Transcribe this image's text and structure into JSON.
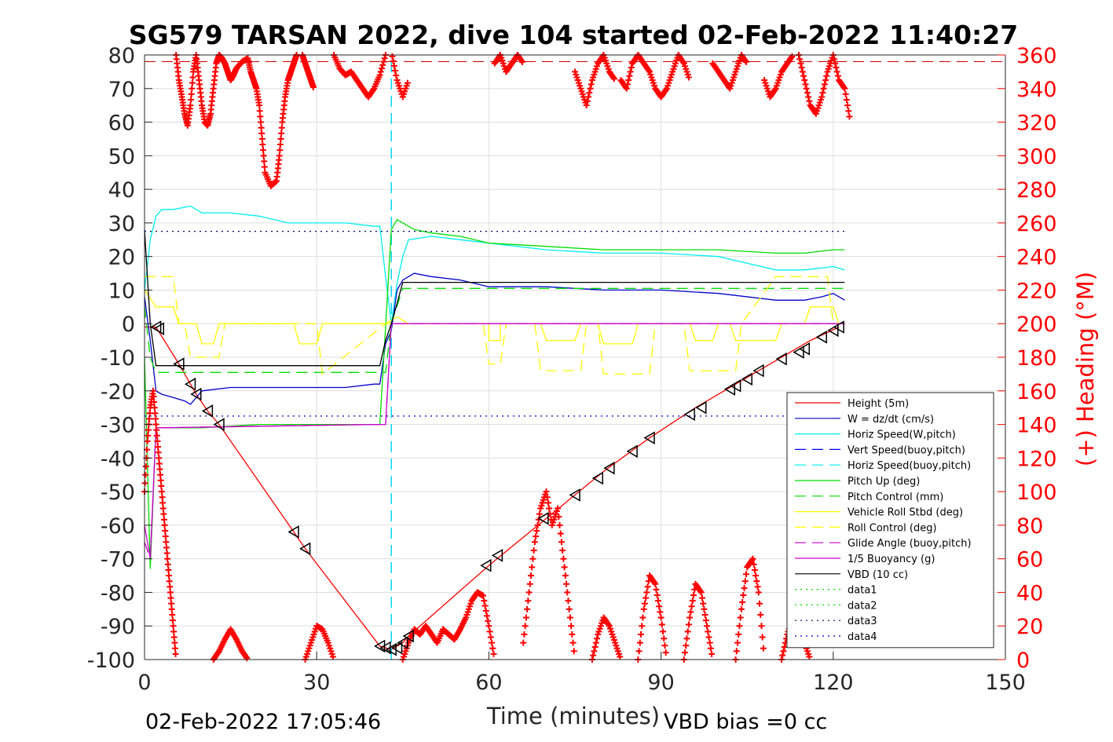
{
  "chart_data": {
    "type": "line",
    "title": "SG579 TARSAN 2022, dive 104 started 02-Feb-2022 11:40:27",
    "xlabel": "Time (minutes)",
    "ylabel_right": "(+) Heading (°M)",
    "footer_left": "02-Feb-2022 17:05:46",
    "footer_right": "VBD bias =0 cc",
    "xlim": [
      0,
      150
    ],
    "ylim": [
      -100,
      80
    ],
    "ylim_right": [
      0,
      360
    ],
    "x_ticks": [
      "0",
      "30",
      "60",
      "90",
      "120",
      "150"
    ],
    "y_ticks": [
      "80",
      "70",
      "60",
      "50",
      "40",
      "30",
      "20",
      "10",
      "0",
      "-10",
      "-20",
      "-30",
      "-40",
      "-50",
      "-60",
      "-70",
      "-80",
      "-90",
      "-100"
    ],
    "y_ticks_right": [
      "360",
      "340",
      "320",
      "300",
      "280",
      "260",
      "240",
      "220",
      "200",
      "180",
      "160",
      "140",
      "120",
      "100",
      "80",
      "60",
      "40",
      "20",
      "0"
    ],
    "grid": true,
    "legend_position": "bottom-right",
    "colors": {
      "height": "#ff0000",
      "w": "#0000cc",
      "horiz_speed": "#00eeee",
      "pitch": "#00dd00",
      "roll": "#ffff00",
      "glide": "#cc00cc",
      "vbd": "#000000",
      "heading": "#ff0000"
    },
    "series": [
      {
        "name": "Height (5m)",
        "color": "#ff0000",
        "style": "solid",
        "x": [
          0,
          2,
          6,
          8,
          9,
          11,
          13,
          26,
          28,
          41,
          43,
          45,
          46,
          60,
          70,
          75,
          80,
          88,
          96,
          104,
          110,
          116,
          121
        ],
        "y": [
          -1,
          -1,
          -12,
          -18,
          -21,
          -26,
          -30,
          -62,
          -67,
          -96,
          -97,
          -95,
          -93,
          -72,
          -58,
          -51,
          -44,
          -34,
          -25,
          -17,
          -11,
          -5,
          -1
        ]
      },
      {
        "name": "W = dz/dt (cm/s)",
        "color": "#0000cc",
        "style": "solid",
        "x": [
          0,
          1,
          2,
          3,
          5,
          7,
          8,
          10,
          15,
          20,
          25,
          30,
          35,
          40,
          41,
          42,
          43,
          44,
          45,
          47,
          50,
          55,
          60,
          70,
          80,
          90,
          100,
          110,
          115,
          118,
          120,
          122
        ],
        "y": [
          8,
          -5,
          -20,
          -21,
          -22,
          -23,
          -24,
          -20,
          -19,
          -19,
          -19,
          -19,
          -19,
          -18,
          -18,
          -6,
          -2,
          10,
          13,
          15,
          14,
          13,
          11,
          11,
          10,
          10,
          9,
          7,
          7,
          8,
          9,
          7
        ]
      },
      {
        "name": "Horiz Speed(W,pitch)",
        "color": "#00eeee",
        "style": "solid",
        "x": [
          0,
          1,
          2,
          3,
          5,
          8,
          10,
          15,
          20,
          25,
          30,
          35,
          40,
          41,
          42,
          43,
          44,
          45,
          46,
          50,
          55,
          60,
          70,
          80,
          90,
          100,
          105,
          110,
          115,
          120,
          122
        ],
        "y": [
          10,
          25,
          32,
          34,
          34,
          35,
          33,
          33,
          32,
          30,
          30,
          30,
          29,
          29,
          14,
          0,
          12,
          20,
          25,
          26,
          25,
          24,
          22,
          21,
          21,
          20,
          18,
          16,
          16,
          17,
          16
        ]
      },
      {
        "name": "Vert Speed(buoy,pitch)",
        "color": "#0000ff",
        "style": "dashed",
        "x": [
          43,
          43
        ],
        "y": [
          -100,
          80
        ]
      },
      {
        "name": "Horiz Speed(buoy,pitch)",
        "color": "#00eeee",
        "style": "dashed",
        "x": [
          43,
          43
        ],
        "y": [
          -100,
          80
        ]
      },
      {
        "name": "Pitch Up (deg)",
        "color": "#00dd00",
        "style": "solid",
        "x": [
          0,
          1,
          2,
          3,
          5,
          10,
          20,
          30,
          40,
          41,
          42,
          43,
          44,
          45,
          47,
          50,
          55,
          60,
          70,
          80,
          90,
          100,
          110,
          115,
          120,
          122
        ],
        "y": [
          -10,
          -73,
          -31,
          -31,
          -31,
          -31,
          -30,
          -30,
          -30,
          -30,
          -1,
          28,
          31,
          30,
          28,
          27,
          26,
          24,
          23,
          22,
          22,
          22,
          21,
          21,
          22,
          22
        ]
      },
      {
        "name": "Pitch Control (mm)",
        "color": "#00dd00",
        "style": "dashed",
        "x": [
          0,
          1,
          2,
          42,
          43,
          45,
          122
        ],
        "y": [
          5,
          -10,
          -14.5,
          -14.5,
          0,
          10.5,
          10.5
        ]
      },
      {
        "name": "Vehicle Roll Stbd (deg)",
        "color": "#ffff00",
        "style": "solid",
        "x": [
          0,
          2,
          3,
          5,
          6,
          7,
          9,
          10,
          12,
          13,
          26,
          27,
          30,
          31,
          40,
          42,
          44,
          46,
          60,
          60,
          62,
          62,
          69,
          70,
          75,
          76,
          79,
          80,
          85,
          86,
          95,
          96,
          99,
          100,
          102,
          103,
          110,
          111,
          115,
          116,
          120,
          121,
          122
        ],
        "y": [
          10,
          5,
          5,
          5,
          0,
          0,
          0,
          -6,
          -6,
          0,
          0,
          -6,
          -6,
          0,
          0,
          0,
          2,
          0,
          0,
          -5,
          -5,
          0,
          0,
          -5,
          -5,
          0,
          0,
          -6,
          -6,
          0,
          0,
          -5,
          -5,
          0,
          0,
          -5,
          -5,
          0,
          0,
          5,
          5,
          0,
          0
        ]
      },
      {
        "name": "Roll Control (deg)",
        "color": "#ffff00",
        "style": "dashed",
        "x": [
          0,
          5,
          6,
          7,
          8,
          9,
          13,
          14,
          30,
          31,
          42,
          44,
          59,
          60,
          62,
          63,
          68,
          69,
          76,
          77,
          79,
          80,
          88,
          89,
          94,
          95,
          103,
          104,
          110,
          111,
          119,
          120,
          122
        ],
        "y": [
          14,
          14,
          0,
          0,
          -10,
          -10,
          -10,
          0,
          0,
          -15,
          0,
          0,
          0,
          -12,
          -12,
          0,
          0,
          -14,
          -14,
          0,
          0,
          -15,
          -15,
          0,
          0,
          -14,
          -14,
          0,
          14,
          14,
          14,
          0,
          0
        ]
      },
      {
        "name": "Glide Angle (buoy,pitch)",
        "color": "#cc00cc",
        "style": "dashed",
        "x": [
          0,
          1,
          2,
          3,
          40,
          42,
          43,
          122
        ],
        "y": [
          -65,
          -70,
          -31,
          -31,
          -30,
          -30,
          0,
          0
        ]
      },
      {
        "name": "1/5 Buoyancy (g)",
        "color": "#cc00cc",
        "style": "solid",
        "x": [
          0,
          1,
          2,
          3,
          40,
          42,
          43,
          122
        ],
        "y": [
          -60,
          -70,
          -31,
          -31,
          -30,
          -30,
          0,
          0
        ]
      },
      {
        "name": "VBD (10 cc)",
        "color": "#000000",
        "style": "solid",
        "x": [
          0,
          1,
          2,
          40,
          41,
          42,
          43,
          44,
          45,
          122
        ],
        "y": [
          28,
          0,
          -12.5,
          -12.5,
          -12.5,
          -5,
          0,
          6,
          12.3,
          12.3
        ]
      },
      {
        "name": "data1",
        "color": "#00dd00",
        "style": "dotted",
        "x": [],
        "y": []
      },
      {
        "name": "data2",
        "color": "#00dd00",
        "style": "dotted",
        "x": [],
        "y": []
      },
      {
        "name": "data3",
        "color": "#000066",
        "style": "dotted",
        "x": [
          0,
          122
        ],
        "y": [
          27.5,
          27.5
        ]
      },
      {
        "name": "data4",
        "color": "#0000cc",
        "style": "dotted",
        "x": [
          0,
          122
        ],
        "y": [
          -27.5,
          -27.5
        ]
      }
    ],
    "reference_line": {
      "color": "#cc0000",
      "style": "dashed",
      "y": 78
    },
    "heading_markers": {
      "axis": "right",
      "color": "#ff0000",
      "segments": [
        {
          "x": [
            0,
            0.5,
            1,
            1.5,
            2,
            2.5,
            3,
            3.5,
            4,
            4.5,
            5,
            5.5
          ],
          "y": [
            100,
            130,
            150,
            160,
            140,
            120,
            100,
            80,
            60,
            40,
            20,
            0
          ]
        },
        {
          "x": [
            5.5,
            6,
            6.5,
            7,
            7.5,
            8,
            8.5,
            9,
            9.5,
            10,
            10.5,
            11,
            11.5,
            12,
            12.5,
            13,
            13.5,
            14,
            14.5,
            15,
            15.5,
            16,
            17,
            18,
            18.5,
            19,
            19.5,
            20,
            20.5,
            21,
            22,
            23,
            23.5,
            24,
            24.5,
            25,
            25.5,
            26,
            26.5,
            27,
            27.5,
            28,
            28.5,
            29,
            29.5
          ],
          "y": [
            360,
            345,
            335,
            325,
            318,
            330,
            350,
            360,
            345,
            330,
            320,
            318,
            325,
            340,
            355,
            360,
            358,
            355,
            350,
            345,
            348,
            352,
            356,
            358,
            350,
            345,
            340,
            330,
            310,
            290,
            282,
            285,
            300,
            320,
            335,
            345,
            350,
            355,
            360,
            362,
            360,
            355,
            350,
            345,
            340
          ]
        },
        {
          "x": [
            12,
            13,
            14,
            15,
            16,
            17,
            18
          ],
          "y": [
            0,
            5,
            12,
            18,
            12,
            5,
            0
          ]
        },
        {
          "x": [
            28,
            29,
            30,
            31,
            32,
            33
          ],
          "y": [
            0,
            10,
            20,
            18,
            10,
            0
          ]
        },
        {
          "x": [
            33,
            34,
            35,
            36,
            37,
            38,
            39,
            40,
            41,
            42,
            43,
            44,
            45,
            46
          ],
          "y": [
            360,
            352,
            348,
            350,
            345,
            340,
            335,
            340,
            348,
            360,
            362,
            345,
            335,
            345
          ]
        },
        {
          "x": [
            45,
            46,
            47,
            48,
            49,
            50,
            51,
            52,
            53,
            54,
            55,
            56,
            57,
            58,
            59,
            60,
            61
          ],
          "y": [
            0,
            10,
            18,
            15,
            20,
            15,
            10,
            18,
            15,
            12,
            18,
            25,
            35,
            40,
            38,
            20,
            0
          ]
        },
        {
          "x": [
            61,
            62,
            63,
            64,
            65,
            66
          ],
          "y": [
            355,
            360,
            350,
            355,
            360,
            355
          ]
        },
        {
          "x": [
            66,
            67,
            68,
            69,
            70,
            71,
            72,
            73,
            74,
            75
          ],
          "y": [
            10,
            40,
            70,
            90,
            100,
            80,
            90,
            60,
            30,
            0
          ]
        },
        {
          "x": [
            75,
            76,
            77,
            78,
            79,
            80,
            81,
            82
          ],
          "y": [
            350,
            340,
            330,
            345,
            355,
            360,
            350,
            345
          ]
        },
        {
          "x": [
            78,
            79,
            80,
            81,
            82,
            83
          ],
          "y": [
            0,
            15,
            25,
            20,
            10,
            0
          ]
        },
        {
          "x": [
            83,
            84,
            85,
            86,
            87,
            88,
            89
          ],
          "y": [
            345,
            340,
            355,
            360,
            355,
            350,
            340
          ]
        },
        {
          "x": [
            86,
            87,
            88,
            89,
            90,
            91
          ],
          "y": [
            0,
            30,
            50,
            45,
            25,
            0
          ]
        },
        {
          "x": [
            89,
            90,
            91,
            92,
            93,
            94,
            95
          ],
          "y": [
            340,
            335,
            340,
            350,
            360,
            355,
            345
          ]
        },
        {
          "x": [
            94,
            95,
            96,
            97,
            98,
            99
          ],
          "y": [
            0,
            25,
            45,
            40,
            20,
            0
          ]
        },
        {
          "x": [
            99,
            100,
            101,
            102,
            103,
            104,
            105
          ],
          "y": [
            355,
            350,
            345,
            340,
            350,
            360,
            355
          ]
        },
        {
          "x": [
            103,
            104,
            105,
            106,
            107,
            108
          ],
          "y": [
            0,
            30,
            55,
            60,
            40,
            0
          ]
        },
        {
          "x": [
            108,
            109,
            110,
            111,
            112,
            113
          ],
          "y": [
            345,
            335,
            340,
            350,
            355,
            360
          ]
        },
        {
          "x": [
            111,
            112,
            113,
            114,
            115,
            116
          ],
          "y": [
            0,
            15,
            25,
            20,
            10,
            0
          ]
        },
        {
          "x": [
            114,
            115,
            116,
            117,
            118,
            119,
            120,
            121,
            122,
            123
          ],
          "y": [
            360,
            345,
            330,
            325,
            335,
            350,
            360,
            345,
            340,
            320
          ]
        }
      ]
    },
    "depth_markers": {
      "color": "#000000",
      "x": [
        2,
        2.5,
        6,
        8,
        9,
        11,
        13,
        26,
        28,
        41,
        42,
        43,
        44,
        45,
        46,
        59.5,
        61.5,
        69.5,
        75,
        79,
        81,
        85,
        88,
        95,
        97,
        102,
        103,
        105,
        107,
        111,
        114,
        115,
        118,
        120,
        121
      ],
      "y": [
        -1,
        -1.5,
        -12,
        -18,
        -21,
        -26,
        -30,
        -62,
        -67,
        -96,
        -96.5,
        -97,
        -96.5,
        -95,
        -93,
        -72,
        -69,
        -58,
        -51,
        -46,
        -43,
        -38,
        -34,
        -27,
        -25,
        -19.5,
        -18.5,
        -16.5,
        -14,
        -10.5,
        -8.5,
        -7.5,
        -4,
        -2,
        -1
      ]
    }
  }
}
